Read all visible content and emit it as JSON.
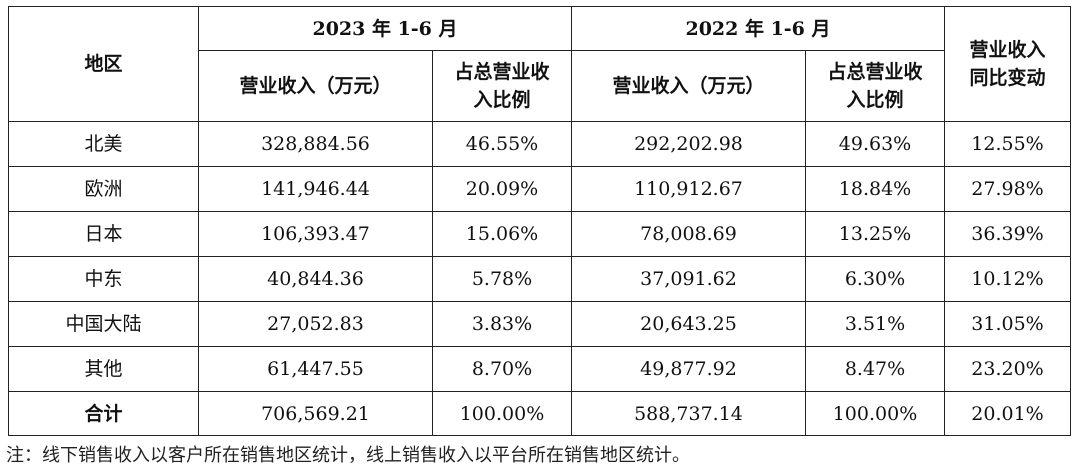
{
  "table": {
    "header": {
      "region_label": "地区",
      "period_2023": "2023 年 1-6 月",
      "period_2022": "2022 年 1-6 月",
      "revenue_label": "营业收入（万元）",
      "share_label_line1": "占总营业收",
      "share_label_line2": "入比例",
      "yoy_label_line1": "营业收入",
      "yoy_label_line2": "同比变动"
    },
    "rows": [
      {
        "region": "北美",
        "rev2023": "328,884.56",
        "share2023": "46.55%",
        "rev2022": "292,202.98",
        "share2022": "49.63%",
        "yoy": "12.55%"
      },
      {
        "region": "欧洲",
        "rev2023": "141,946.44",
        "share2023": "20.09%",
        "rev2022": "110,912.67",
        "share2022": "18.84%",
        "yoy": "27.98%"
      },
      {
        "region": "日本",
        "rev2023": "106,393.47",
        "share2023": "15.06%",
        "rev2022": "78,008.69",
        "share2022": "13.25%",
        "yoy": "36.39%"
      },
      {
        "region": "中东",
        "rev2023": "40,844.36",
        "share2023": "5.78%",
        "rev2022": "37,091.62",
        "share2022": "6.30%",
        "yoy": "10.12%"
      },
      {
        "region": "中国大陆",
        "rev2023": "27,052.83",
        "share2023": "3.83%",
        "rev2022": "20,643.25",
        "share2022": "3.51%",
        "yoy": "31.05%"
      },
      {
        "region": "其他",
        "rev2023": "61,447.55",
        "share2023": "8.70%",
        "rev2022": "49,877.92",
        "share2022": "8.47%",
        "yoy": "23.20%"
      }
    ],
    "total": {
      "region": "合计",
      "rev2023": "706,569.21",
      "share2023": "100.00%",
      "rev2022": "588,737.14",
      "share2022": "100.00%",
      "yoy": "20.01%"
    }
  },
  "note": "注：线下销售收入以客户所在销售地区统计，线上销售收入以平台所在销售地区统计。"
}
